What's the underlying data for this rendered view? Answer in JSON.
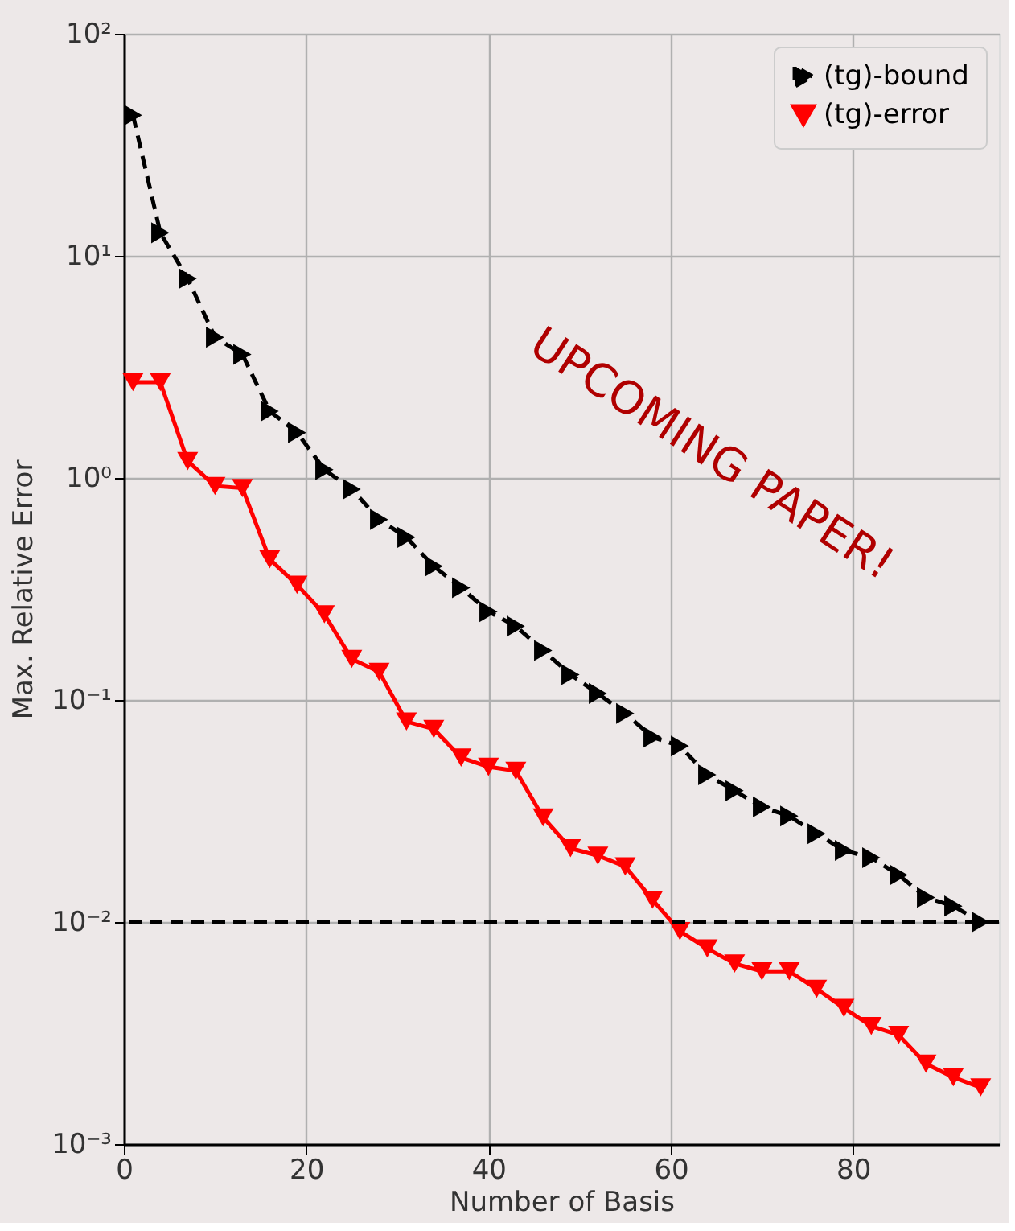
{
  "chart_data": {
    "type": "line",
    "xlabel": "Number of Basis",
    "ylabel": "Max. Relative Error",
    "x": [
      1,
      4,
      7,
      10,
      13,
      16,
      19,
      22,
      25,
      28,
      31,
      34,
      37,
      40,
      43,
      46,
      49,
      52,
      55,
      58,
      61,
      64,
      67,
      70,
      73,
      76,
      79,
      82,
      85,
      88,
      91,
      94
    ],
    "series": [
      {
        "name": "(tg)-bound",
        "color": "#000000",
        "line_style": "dashed",
        "marker": "triangle-right",
        "values": [
          43,
          12.7,
          7.9,
          4.3,
          3.6,
          2.0,
          1.6,
          1.09,
          0.89,
          0.65,
          0.54,
          0.4,
          0.32,
          0.25,
          0.215,
          0.167,
          0.13,
          0.107,
          0.087,
          0.068,
          0.062,
          0.046,
          0.039,
          0.033,
          0.03,
          0.025,
          0.021,
          0.0195,
          0.0163,
          0.0129,
          0.0118,
          0.01
        ]
      },
      {
        "name": "(tg)-error",
        "color": "#ff0000",
        "line_style": "solid",
        "marker": "triangle-down",
        "values": [
          2.7,
          2.7,
          1.19,
          0.92,
          0.9,
          0.43,
          0.33,
          0.243,
          0.153,
          0.134,
          0.08,
          0.074,
          0.055,
          0.05,
          0.048,
          0.0296,
          0.0215,
          0.0199,
          0.0178,
          0.0126,
          0.0091,
          0.0076,
          0.0065,
          0.006,
          0.006,
          0.005,
          0.0041,
          0.0034,
          0.0031,
          0.0023,
          0.002,
          0.0018
        ]
      }
    ],
    "log": "y",
    "xlim": [
      0,
      96
    ],
    "xticks": [
      0,
      20,
      40,
      60,
      80
    ],
    "ylim": [
      0.001,
      100
    ],
    "yticks": [
      {
        "value": 0.001,
        "label": "10⁻³"
      },
      {
        "value": 0.01,
        "label": "10⁻²"
      },
      {
        "value": 0.1,
        "label": "10⁻¹"
      },
      {
        "value": 1,
        "label": "10⁰"
      },
      {
        "value": 10,
        "label": "10¹"
      },
      {
        "value": 100,
        "label": "10²"
      }
    ],
    "ref_lines": [
      {
        "axis": "y",
        "value": 0.01,
        "color": "#000000",
        "line_style": "dashed"
      }
    ],
    "annotations": [
      "UPCOMING PAPER!"
    ],
    "grid": true,
    "legend": "top right"
  }
}
